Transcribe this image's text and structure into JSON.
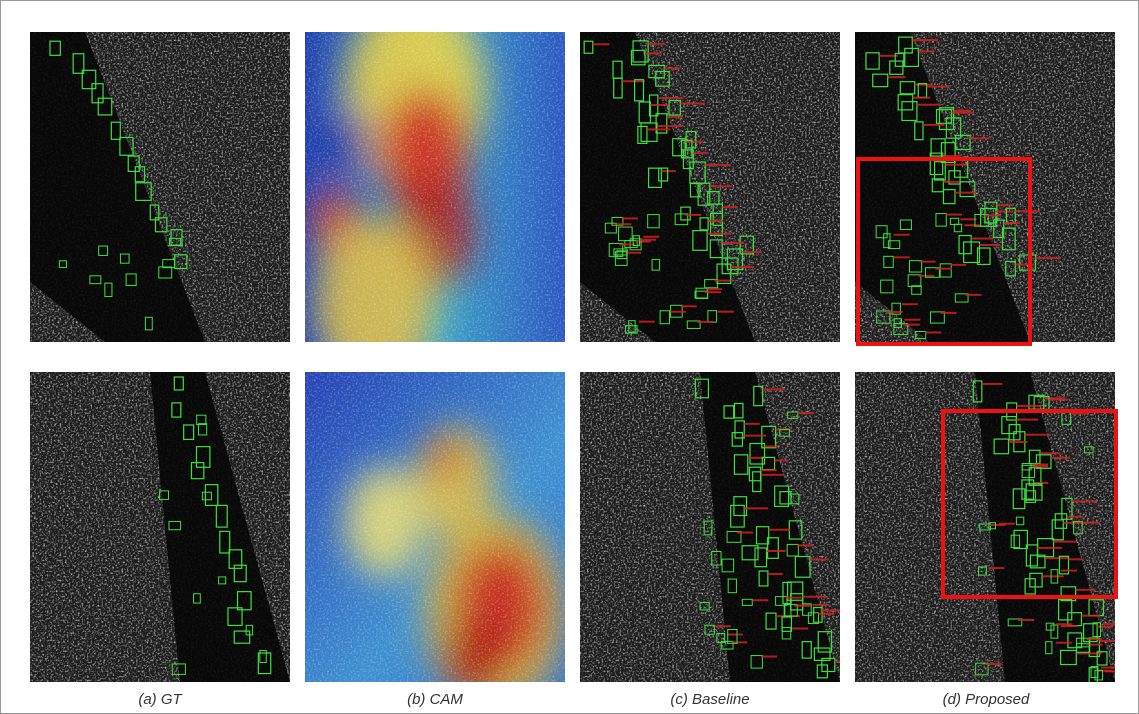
{
  "captions": [
    "(a) GT",
    "(b) CAM",
    "(c) Baseline",
    "(d) Proposed"
  ]
}
